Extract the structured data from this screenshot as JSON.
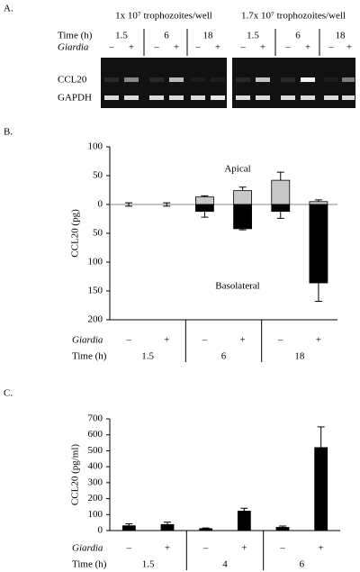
{
  "panel_a": {
    "label": "A.",
    "conditions": [
      "1x 10⁷ trophozoites/well",
      "1.7x 10⁷ trophozoites/well"
    ],
    "time_label": "Time (h)",
    "giardia_label": "Giardia",
    "times": [
      "1.5",
      "6",
      "18"
    ],
    "giardia": [
      "–",
      "+"
    ],
    "bands": [
      "CCL20",
      "GAPDH"
    ]
  },
  "chart_data": [
    {
      "type": "bar",
      "panel_label": "B.",
      "y_label": "CCL20 (pg)",
      "row_labels": [
        "Giardia",
        "Time (h)"
      ],
      "categories": [
        "–",
        "+",
        "–",
        "+",
        "–",
        "+"
      ],
      "groups": [
        "1.5",
        "6",
        "18"
      ],
      "series": [
        {
          "name": "Apical",
          "color": "#c8c8c8",
          "values": [
            0,
            0,
            13,
            24,
            42,
            5
          ],
          "errors": [
            3,
            3,
            2,
            6,
            14,
            3
          ]
        },
        {
          "name": "Basolateral",
          "color": "#000000",
          "values": [
            0,
            0,
            -12,
            -42,
            -12,
            -136
          ],
          "errors": [
            null,
            null,
            10,
            2,
            12,
            32
          ]
        }
      ],
      "ylim": [
        -200,
        100
      ],
      "yticks": [
        {
          "value": -200,
          "label": "200"
        },
        {
          "value": -150,
          "label": "150"
        },
        {
          "value": -100,
          "label": "100"
        },
        {
          "value": -50,
          "label": "50"
        },
        0,
        50,
        100
      ]
    },
    {
      "type": "bar",
      "panel_label": "C.",
      "y_label": "CCL20 (pg/ml)",
      "row_labels": [
        "Giardia",
        "Time (h)"
      ],
      "categories": [
        "–",
        "+",
        "–",
        "+",
        "–",
        "+"
      ],
      "groups": [
        "1.5",
        "4",
        "6"
      ],
      "color": "#000000",
      "values": [
        30,
        38,
        12,
        122,
        20,
        520
      ],
      "errors": [
        12,
        15,
        4,
        18,
        8,
        130
      ],
      "ylim": [
        0,
        700
      ],
      "yticks": [
        0,
        100,
        200,
        300,
        400,
        500,
        600,
        700
      ]
    }
  ]
}
